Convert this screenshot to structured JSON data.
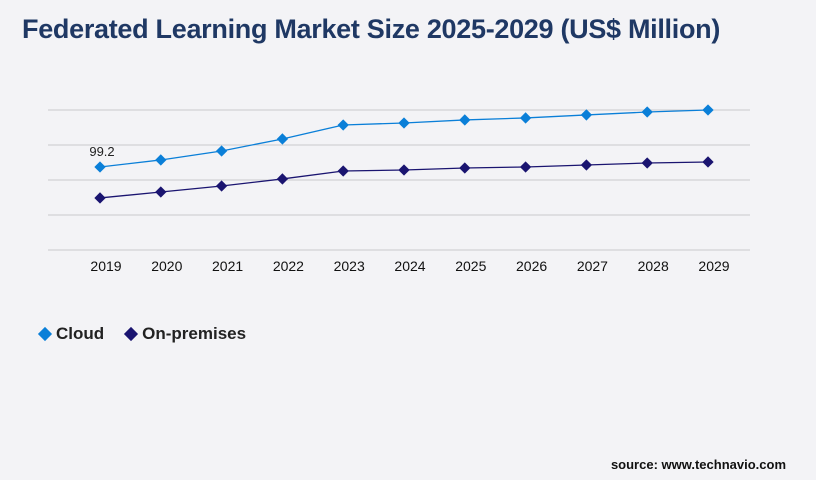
{
  "title": "Federated Learning Market Size 2025-2029 (US$ Million)",
  "source": "source: www.technavio.com",
  "chart_data": {
    "type": "line",
    "title": "Federated Learning Market Size 2025-2029 (US$ Million)",
    "x": [
      "2019",
      "2020",
      "2021",
      "2022",
      "2023",
      "2024",
      "2025",
      "2026",
      "2027",
      "2028",
      "2029"
    ],
    "ylim": [
      0,
      167.3
    ],
    "grid": true,
    "legend_placement": "bottom-left",
    "series": [
      {
        "name": "Cloud",
        "color": "#0a7fd8",
        "values": [
          99.2,
          107.6,
          118.3,
          132.7,
          149.4,
          151.8,
          155.4,
          157.8,
          161.4,
          164.9,
          167.3
        ]
      },
      {
        "name": "On-premises",
        "color": "#1a1470",
        "values": [
          62.2,
          69.3,
          76.5,
          84.9,
          94.4,
          95.6,
          98.0,
          99.2,
          101.6,
          104.0,
          105.2
        ]
      }
    ],
    "annotations": [
      {
        "series": "Cloud",
        "x": "2019",
        "text": "99.2"
      }
    ]
  }
}
